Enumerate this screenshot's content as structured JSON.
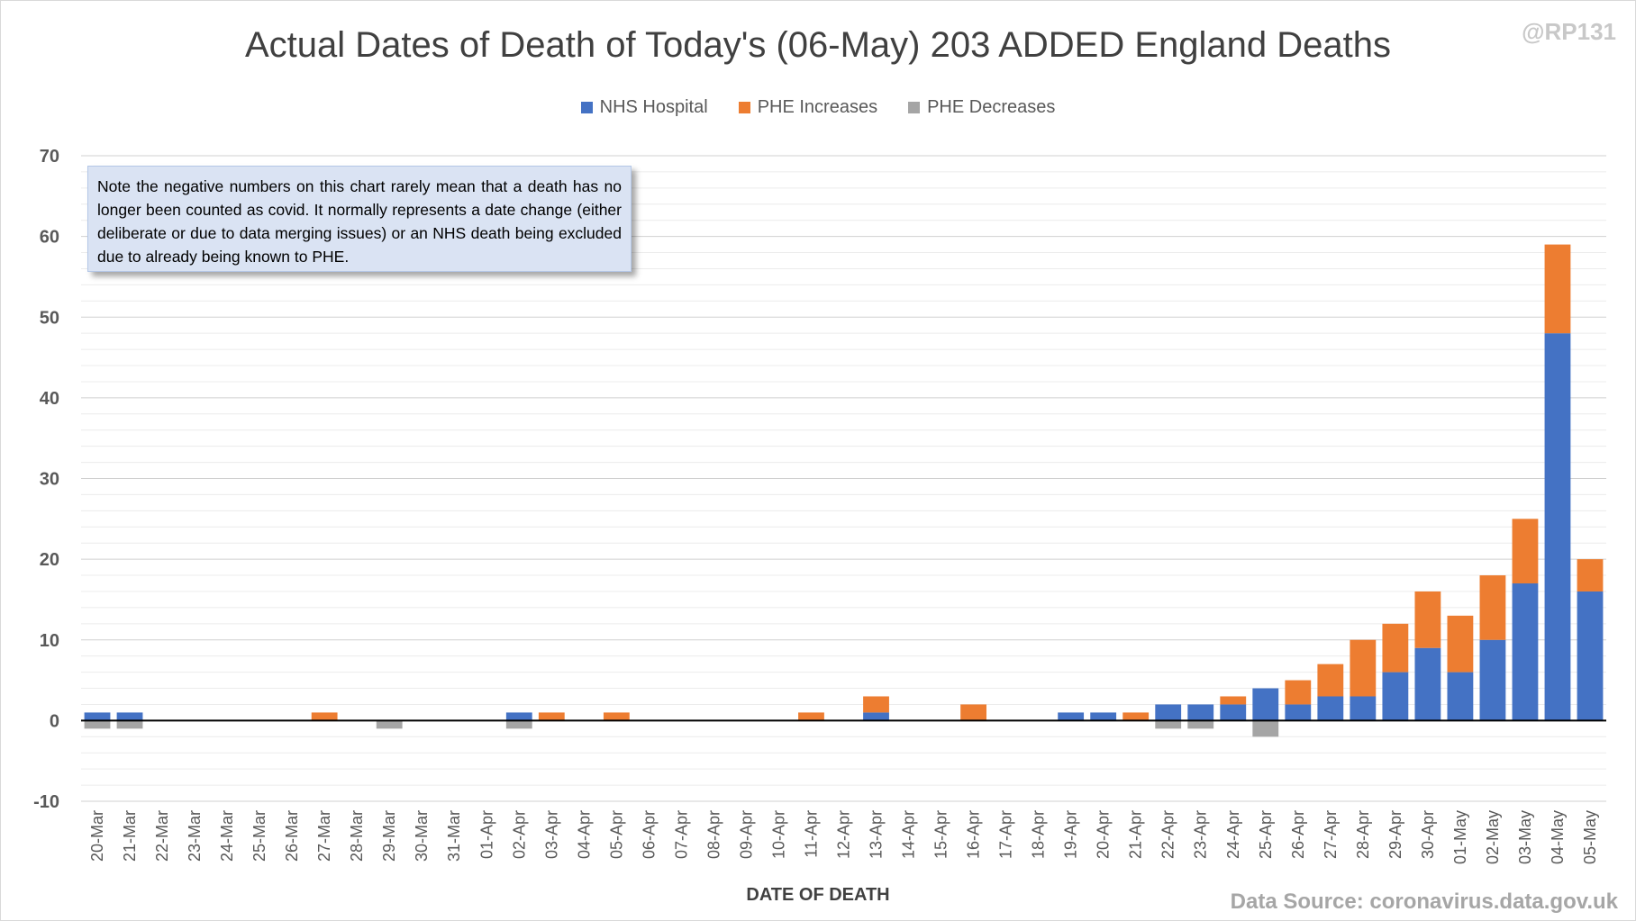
{
  "header": {
    "title": "Actual Dates of Death of Today's (06-May) 203 ADDED England Deaths",
    "handle": "@RP131"
  },
  "legend": [
    {
      "label": "NHS Hospital",
      "color": "#4472c4"
    },
    {
      "label": "PHE Increases",
      "color": "#ed7d31"
    },
    {
      "label": "PHE Decreases",
      "color": "#a5a5a5"
    }
  ],
  "note": {
    "text": "Note the negative numbers on this chart rarely mean that a death has no longer been counted as covid. It normally represents a date change (either deliberate or due to data merging issues) or an NHS death being excluded due to already being known to PHE."
  },
  "footer": {
    "source": "Data Source: coronavirus.data.gov.uk"
  },
  "chart_data": {
    "type": "bar",
    "stacked": true,
    "title": "Actual Dates of Death of Today's (06-May) 203 ADDED England Deaths",
    "xlabel": "DATE OF DEATH",
    "ylabel": "",
    "ylim": [
      -10,
      70
    ],
    "yticks": [
      -10,
      0,
      10,
      20,
      30,
      40,
      50,
      60,
      70
    ],
    "grid": true,
    "legend_position": "top",
    "categories": [
      "20-Mar",
      "21-Mar",
      "22-Mar",
      "23-Mar",
      "24-Mar",
      "25-Mar",
      "26-Mar",
      "27-Mar",
      "28-Mar",
      "29-Mar",
      "30-Mar",
      "31-Mar",
      "01-Apr",
      "02-Apr",
      "03-Apr",
      "04-Apr",
      "05-Apr",
      "06-Apr",
      "07-Apr",
      "08-Apr",
      "09-Apr",
      "10-Apr",
      "11-Apr",
      "12-Apr",
      "13-Apr",
      "14-Apr",
      "15-Apr",
      "16-Apr",
      "17-Apr",
      "18-Apr",
      "19-Apr",
      "20-Apr",
      "21-Apr",
      "22-Apr",
      "23-Apr",
      "24-Apr",
      "25-Apr",
      "26-Apr",
      "27-Apr",
      "28-Apr",
      "29-Apr",
      "30-Apr",
      "01-May",
      "02-May",
      "03-May",
      "04-May",
      "05-May"
    ],
    "series": [
      {
        "name": "NHS Hospital",
        "color": "#4472c4",
        "values": [
          1,
          1,
          0,
          0,
          0,
          0,
          0,
          0,
          0,
          0,
          0,
          0,
          0,
          1,
          0,
          0,
          0,
          0,
          0,
          0,
          0,
          0,
          0,
          0,
          1,
          0,
          0,
          0,
          0,
          0,
          1,
          1,
          0,
          2,
          2,
          2,
          4,
          2,
          3,
          3,
          6,
          9,
          6,
          10,
          17,
          48,
          16
        ]
      },
      {
        "name": "PHE Increases",
        "color": "#ed7d31",
        "values": [
          0,
          0,
          0,
          0,
          0,
          0,
          0,
          1,
          0,
          0,
          0,
          0,
          0,
          0,
          1,
          0,
          1,
          0,
          0,
          0,
          0,
          0,
          1,
          0,
          2,
          0,
          0,
          2,
          0,
          0,
          0,
          0,
          1,
          0,
          0,
          1,
          0,
          3,
          4,
          7,
          6,
          7,
          7,
          8,
          8,
          11,
          4
        ]
      },
      {
        "name": "PHE Decreases",
        "color": "#a5a5a5",
        "values": [
          -1,
          -1,
          0,
          0,
          0,
          0,
          0,
          0,
          0,
          -1,
          0,
          0,
          0,
          -1,
          0,
          0,
          0,
          0,
          0,
          0,
          0,
          0,
          0,
          0,
          0,
          0,
          0,
          0,
          0,
          0,
          0,
          0,
          0,
          -1,
          -1,
          0,
          -2,
          0,
          0,
          0,
          0,
          0,
          0,
          0,
          0,
          0,
          0
        ]
      }
    ]
  }
}
